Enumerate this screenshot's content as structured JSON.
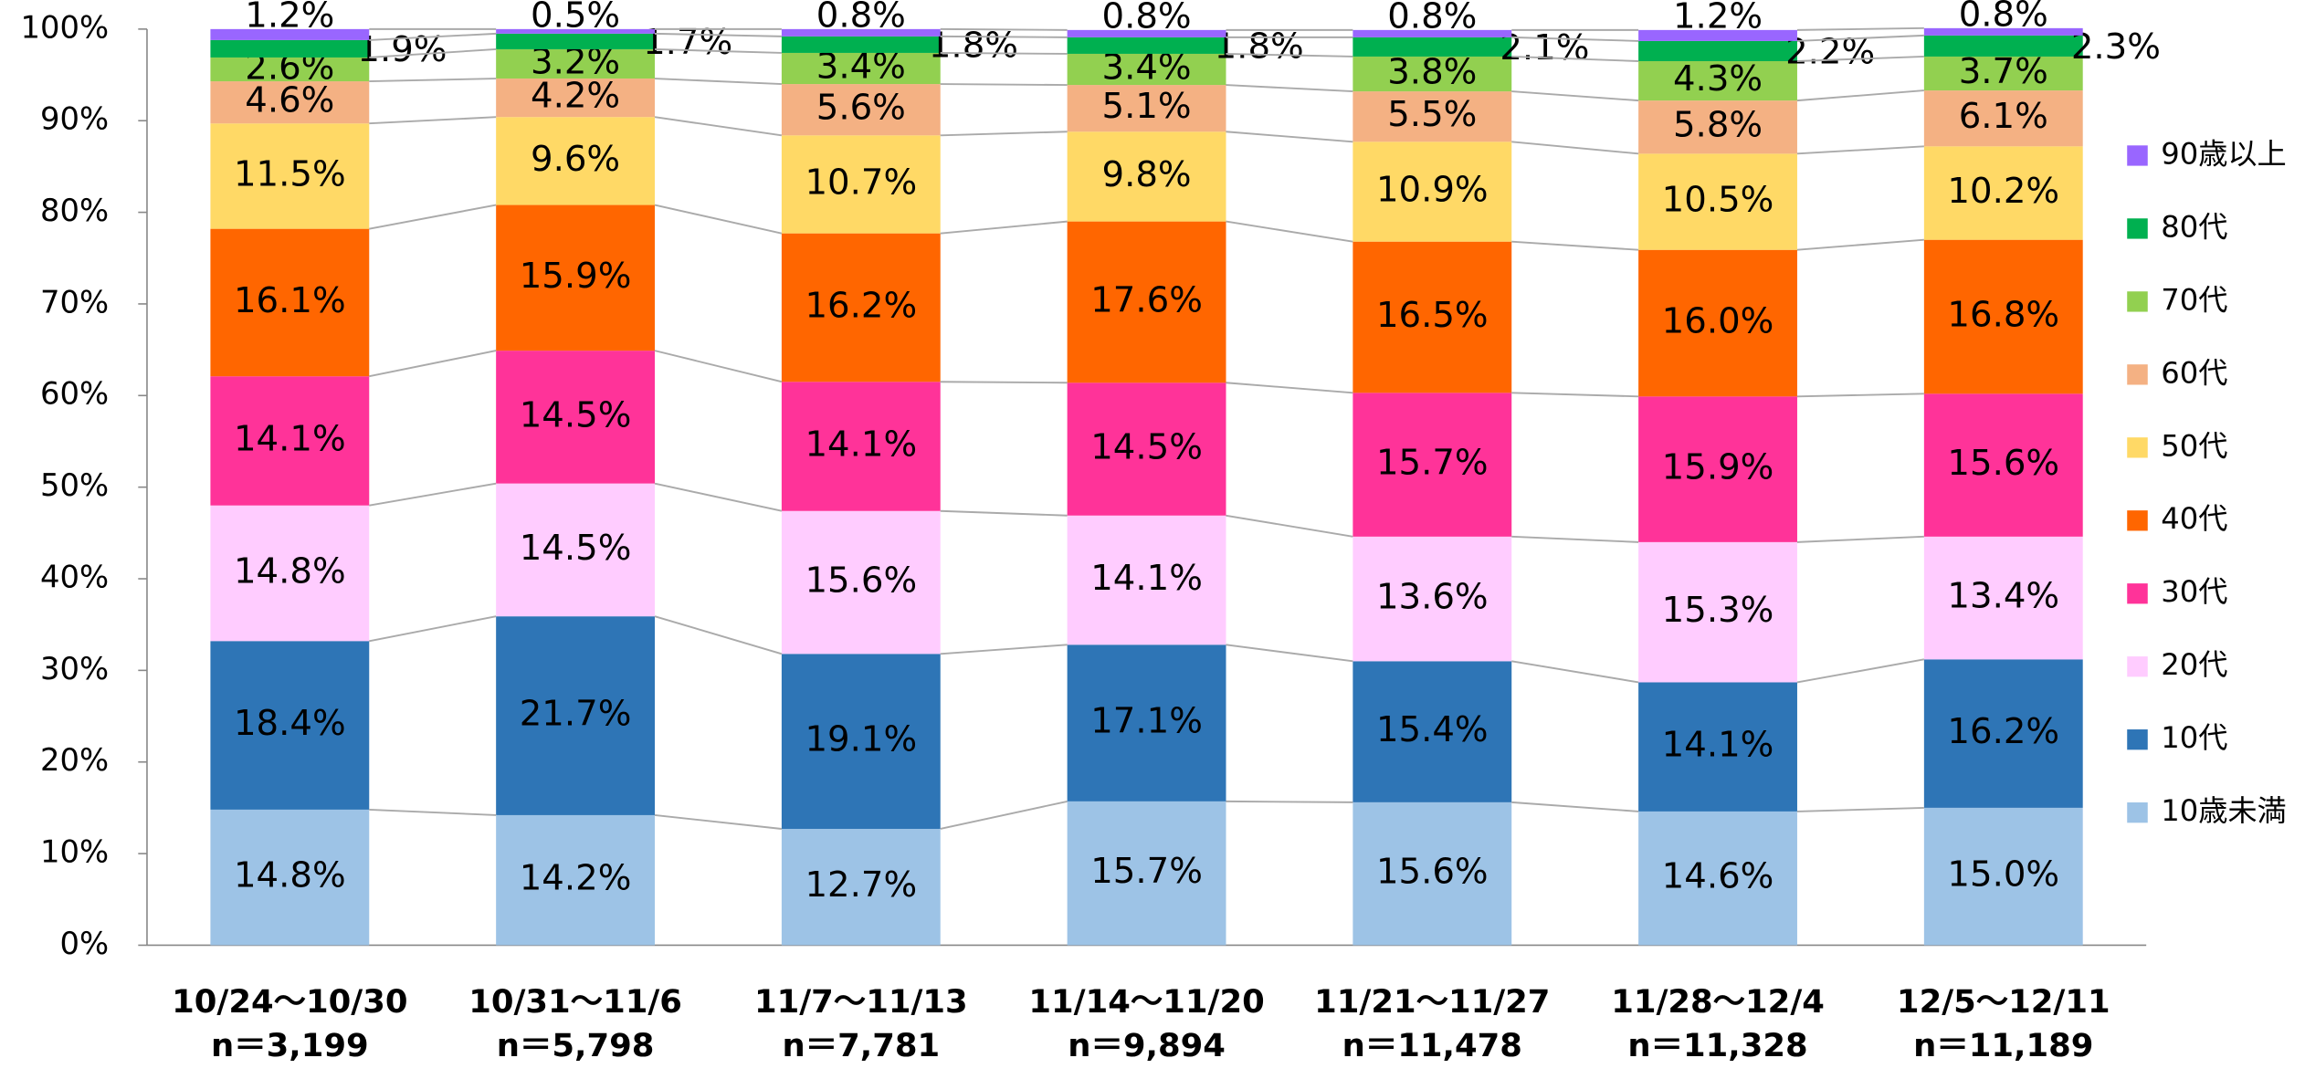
{
  "chart_data": {
    "type": "stacked_bar",
    "categories": [
      "10/24～10/30",
      "10/31～11/6",
      "11/7～11/13",
      "11/14～11/20",
      "11/21～11/27",
      "11/28～12/4",
      "12/5～12/11"
    ],
    "sample_sizes": [
      "n＝3,199",
      "n＝5,798",
      "n＝7,781",
      "n＝9,894",
      "n＝11,478",
      "n＝11,328",
      "n＝11,189"
    ],
    "ylim": [
      0,
      100
    ],
    "yticks": [
      {
        "value": 0,
        "label": "0%"
      },
      {
        "value": 10,
        "label": "10%"
      },
      {
        "value": 20,
        "label": "20%"
      },
      {
        "value": 30,
        "label": "30%"
      },
      {
        "value": 40,
        "label": "40%"
      },
      {
        "value": 50,
        "label": "50%"
      },
      {
        "value": 60,
        "label": "60%"
      },
      {
        "value": 70,
        "label": "70%"
      },
      {
        "value": 80,
        "label": "80%"
      },
      {
        "value": 90,
        "label": "90%"
      },
      {
        "value": 100,
        "label": "100%"
      }
    ],
    "series": [
      {
        "name": "10歳未満",
        "color": "#9dc3e6",
        "values": [
          14.8,
          14.2,
          12.7,
          15.7,
          15.6,
          14.6,
          15.0
        ],
        "value_labels": [
          "14.8%",
          "14.2%",
          "12.7%",
          "15.7%",
          "15.6%",
          "14.6%",
          "15.0%"
        ]
      },
      {
        "name": "10代",
        "color": "#2e75b6",
        "values": [
          18.4,
          21.7,
          19.1,
          17.1,
          15.4,
          14.1,
          16.2
        ],
        "value_labels": [
          "18.4%",
          "21.7%",
          "19.1%",
          "17.1%",
          "15.4%",
          "14.1%",
          "16.2%"
        ]
      },
      {
        "name": "20代",
        "color": "#ffccff",
        "values": [
          14.8,
          14.5,
          15.6,
          14.1,
          13.6,
          15.3,
          13.4
        ],
        "value_labels": [
          "14.8%",
          "14.5%",
          "15.6%",
          "14.1%",
          "13.6%",
          "15.3%",
          "13.4%"
        ]
      },
      {
        "name": "30代",
        "color": "#ff3399",
        "values": [
          14.1,
          14.5,
          14.1,
          14.5,
          15.7,
          15.9,
          15.6
        ],
        "value_labels": [
          "14.1%",
          "14.5%",
          "14.1%",
          "14.5%",
          "15.7%",
          "15.9%",
          "15.6%"
        ]
      },
      {
        "name": "40代",
        "color": "#ff6600",
        "values": [
          16.1,
          15.9,
          16.2,
          17.6,
          16.5,
          16.0,
          16.8
        ],
        "value_labels": [
          "16.1%",
          "15.9%",
          "16.2%",
          "17.6%",
          "16.5%",
          "16.0%",
          "16.8%"
        ]
      },
      {
        "name": "50代",
        "color": "#ffd966",
        "values": [
          11.5,
          9.6,
          10.7,
          9.8,
          10.9,
          10.5,
          10.2
        ],
        "value_labels": [
          "11.5%",
          "9.6%",
          "10.7%",
          "9.8%",
          "10.9%",
          "10.5%",
          "10.2%"
        ]
      },
      {
        "name": "60代",
        "color": "#f4b183",
        "values": [
          4.6,
          4.2,
          5.6,
          5.1,
          5.5,
          5.8,
          6.1
        ],
        "value_labels": [
          "4.6%",
          "4.2%",
          "5.6%",
          "5.1%",
          "5.5%",
          "5.8%",
          "6.1%"
        ]
      },
      {
        "name": "70代",
        "color": "#92d050",
        "values": [
          2.6,
          3.2,
          3.4,
          3.4,
          3.8,
          4.3,
          3.7
        ],
        "value_labels": [
          "2.6%",
          "3.2%",
          "3.4%",
          "3.4%",
          "3.8%",
          "4.3%",
          "3.7%"
        ]
      },
      {
        "name": "80代",
        "color": "#00b050",
        "values": [
          1.9,
          1.7,
          1.8,
          1.8,
          2.1,
          2.2,
          2.3
        ],
        "value_labels": [
          "1.9%",
          "1.7%",
          "1.8%",
          "1.8%",
          "2.1%",
          "2.2%",
          "2.3%"
        ]
      },
      {
        "name": "90歳以上",
        "color": "#9966ff",
        "values": [
          1.2,
          0.5,
          0.8,
          0.8,
          0.8,
          1.2,
          0.8
        ],
        "value_labels": [
          "1.2%",
          "0.5%",
          "0.8%",
          "0.8%",
          "0.8%",
          "1.2%",
          "0.8%"
        ]
      }
    ]
  }
}
